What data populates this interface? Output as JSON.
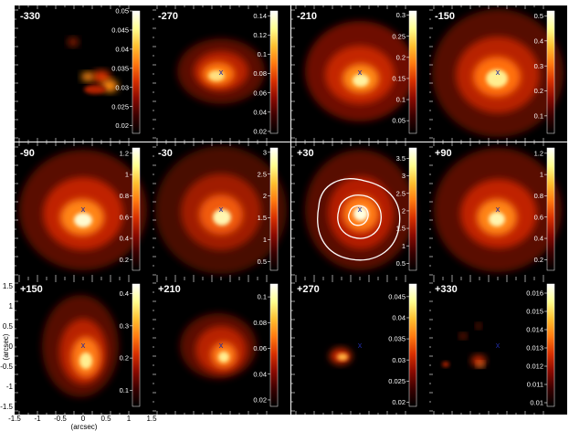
{
  "figure": {
    "panels": [
      {
        "label": "-330",
        "cb_ticks": [
          "0.05",
          "0.045",
          "0.04",
          "0.035",
          "0.03",
          "0.025",
          "0.02"
        ],
        "cb_values": [
          0.05,
          0.045,
          0.04,
          0.035,
          0.03,
          0.025,
          0.02
        ],
        "cb_range": [
          0.018,
          0.05
        ],
        "center_mark": ""
      },
      {
        "label": "-270",
        "cb_ticks": [
          "0.14",
          "0.12",
          "0.1",
          "0.08",
          "0.06",
          "0.04",
          "0.02"
        ],
        "cb_values": [
          0.14,
          0.12,
          0.1,
          0.08,
          0.06,
          0.04,
          0.02
        ],
        "cb_range": [
          0.018,
          0.145
        ],
        "center_mark": "x"
      },
      {
        "label": "-210",
        "cb_ticks": [
          "0.3",
          "0.25",
          "0.2",
          "0.15",
          "0.1",
          "0.05"
        ],
        "cb_values": [
          0.3,
          0.25,
          0.2,
          0.15,
          0.1,
          0.05
        ],
        "cb_range": [
          0.02,
          0.31
        ],
        "center_mark": "x"
      },
      {
        "label": "-150",
        "cb_ticks": [
          "0.5",
          "0.4",
          "0.3",
          "0.2",
          "0.1"
        ],
        "cb_values": [
          0.5,
          0.4,
          0.3,
          0.2,
          0.1
        ],
        "cb_range": [
          0.03,
          0.52
        ],
        "center_mark": "x"
      },
      {
        "label": "-90",
        "cb_ticks": [
          "1.2",
          "1",
          "0.8",
          "0.6",
          "0.4",
          "0.2"
        ],
        "cb_values": [
          1.2,
          1.0,
          0.8,
          0.6,
          0.4,
          0.2
        ],
        "cb_range": [
          0.1,
          1.25
        ],
        "center_mark": "x"
      },
      {
        "label": "-30",
        "cb_ticks": [
          "3",
          "2.5",
          "2",
          "1.5",
          "1",
          "0.5"
        ],
        "cb_values": [
          3.0,
          2.5,
          2.0,
          1.5,
          1.0,
          0.5
        ],
        "cb_range": [
          0.3,
          3.1
        ],
        "center_mark": "x"
      },
      {
        "label": "+30",
        "cb_ticks": [
          "3.5",
          "3",
          "2.5",
          "2",
          "1.5",
          "1",
          "0.5"
        ],
        "cb_values": [
          3.5,
          3.0,
          2.5,
          2.0,
          1.5,
          1.0,
          0.5
        ],
        "cb_range": [
          0.3,
          3.8
        ],
        "center_mark": "x"
      },
      {
        "label": "+90",
        "cb_ticks": [
          "1.2",
          "1",
          "0.8",
          "0.6",
          "0.4",
          "0.2"
        ],
        "cb_values": [
          1.2,
          1.0,
          0.8,
          0.6,
          0.4,
          0.2
        ],
        "cb_range": [
          0.1,
          1.25
        ],
        "center_mark": "x"
      },
      {
        "label": "+150",
        "cb_ticks": [
          "0.4",
          "0.3",
          "0.2",
          "0.1"
        ],
        "cb_values": [
          0.4,
          0.3,
          0.2,
          0.1
        ],
        "cb_range": [
          0.05,
          0.43
        ],
        "center_mark": "x"
      },
      {
        "label": "+210",
        "cb_ticks": [
          "0.1",
          "0.08",
          "0.06",
          "0.04",
          "0.02"
        ],
        "cb_values": [
          0.1,
          0.08,
          0.06,
          0.04,
          0.02
        ],
        "cb_range": [
          0.015,
          0.11
        ],
        "center_mark": "x"
      },
      {
        "label": "+270",
        "cb_ticks": [
          "0.045",
          "0.04",
          "0.035",
          "0.03",
          "0.025",
          "0.02"
        ],
        "cb_values": [
          0.045,
          0.04,
          0.035,
          0.03,
          0.025,
          0.02
        ],
        "cb_range": [
          0.019,
          0.048
        ],
        "center_mark": "x"
      },
      {
        "label": "+330",
        "cb_ticks": [
          "0.016",
          "0.015",
          "0.014",
          "0.013",
          "0.012",
          "0.011",
          "0.01"
        ],
        "cb_values": [
          0.016,
          0.015,
          0.014,
          0.013,
          0.012,
          0.011,
          0.01
        ],
        "cb_range": [
          0.0098,
          0.0165
        ],
        "center_mark": "x"
      }
    ],
    "x_axis": {
      "title": "(arcsec)",
      "ticks": [
        "-1.5",
        "-1",
        "-0.5",
        "0",
        "0.5",
        "1",
        "1.5"
      ],
      "values": [
        -1.5,
        -1,
        -0.5,
        0,
        0.5,
        1,
        1.5
      ]
    },
    "y_axis": {
      "title": "(arcsec)",
      "ticks": [
        "1.5",
        "1",
        "0.5",
        "0",
        "-0.5",
        "-1",
        "-1.5"
      ],
      "values": [
        1.5,
        1,
        0.5,
        0,
        -0.5,
        -1,
        -1.5
      ]
    },
    "colors": {
      "background": "#000000",
      "colormap": [
        "#000000",
        "#3a0000",
        "#8b0a00",
        "#d83000",
        "#ff7a10",
        "#ffc030",
        "#ffff90",
        "#ffffff"
      ],
      "center_mark": "#1f2a9e",
      "contours": "#ffffff",
      "frame": "#ffffff"
    }
  }
}
